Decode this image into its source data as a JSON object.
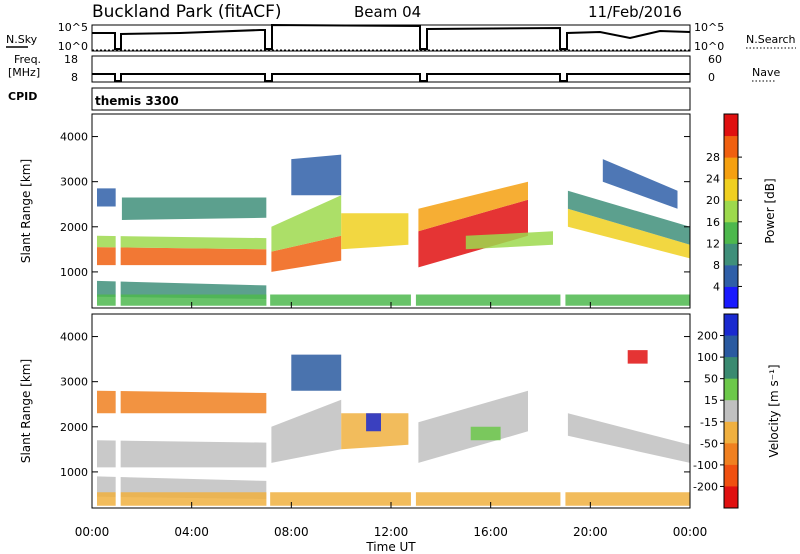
{
  "header": {
    "station": "Buckland Park (fitACF)",
    "beam": "Beam 04",
    "date": "11/Feb/2016"
  },
  "panels": {
    "nsky_label": "N.Sky",
    "nsearch_label": "N.Search",
    "freq_label_line1": "Freq.",
    "freq_label_line2": "[MHz]",
    "nave_label": "Nave",
    "cpid_label": "CPID",
    "cpid_value": "themis 3300",
    "noise_ticks_left": [
      "10^5",
      "10^0"
    ],
    "noise_ticks_right": [
      "10^5",
      "10^0"
    ],
    "freq_ticks": [
      "18",
      "8"
    ],
    "nave_ticks": [
      "60",
      "0"
    ]
  },
  "chart_data": [
    {
      "type": "heatmap",
      "title": "",
      "xlabel": "",
      "ylabel": "Slant Range [km]",
      "xlim": [
        0,
        24
      ],
      "ylim": [
        200,
        4500
      ],
      "x_ticks": [],
      "y_ticks": [
        "1000",
        "2000",
        "3000",
        "4000"
      ],
      "colorbar_label": "Power [dB]",
      "colorbar_ticks": [
        "4",
        "8",
        "12",
        "16",
        "20",
        "24",
        "28"
      ],
      "colorbar_colors": [
        "#1a1aff",
        "#2f5fa8",
        "#3f8f7a",
        "#4db84d",
        "#9dd94d",
        "#f0d020",
        "#f5a010",
        "#f06010",
        "#e01010"
      ],
      "data_gaps_hours": [
        [
          0.95,
          1.15
        ],
        [
          7.0,
          7.15
        ],
        [
          12.8,
          13.0
        ],
        [
          18.8,
          19.0
        ]
      ]
    },
    {
      "type": "heatmap",
      "title": "",
      "xlabel": "Time UT",
      "ylabel": "Slant Range [km]",
      "xlim": [
        0,
        24
      ],
      "ylim": [
        200,
        4500
      ],
      "x_ticks": [
        "00:00",
        "04:00",
        "08:00",
        "12:00",
        "16:00",
        "20:00",
        "00:00"
      ],
      "y_ticks": [
        "1000",
        "2000",
        "3000",
        "4000"
      ],
      "colorbar_label": "Velocity [m s⁻¹]",
      "colorbar_ticks": [
        "200",
        "100",
        "50",
        "15",
        "-15",
        "-50",
        "-100",
        "-200"
      ],
      "colorbar_colors": [
        "#1a2ad0",
        "#2a5aa0",
        "#3a8a70",
        "#6cc84a",
        "#c0c0c0",
        "#f0b040",
        "#f08020",
        "#f05010",
        "#e01010"
      ],
      "data_gaps_hours": [
        [
          0.95,
          1.15
        ],
        [
          7.0,
          7.15
        ],
        [
          12.8,
          13.0
        ],
        [
          18.8,
          19.0
        ]
      ]
    }
  ]
}
